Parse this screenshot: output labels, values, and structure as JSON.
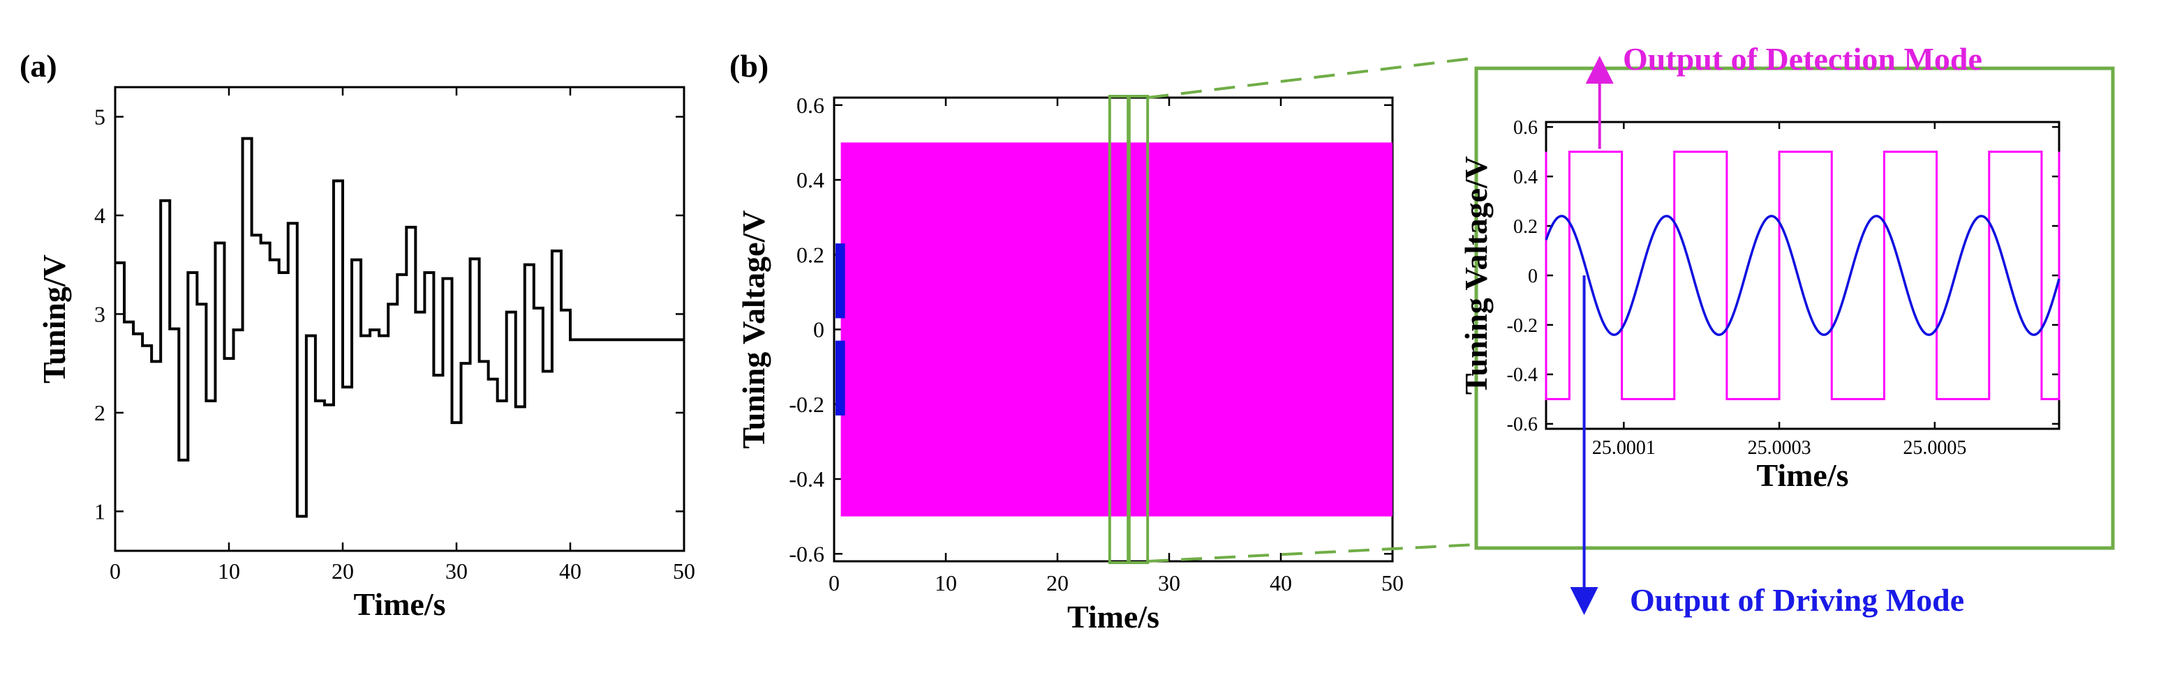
{
  "panel_labels": {
    "a": "(a)",
    "b": "(b)"
  },
  "annotations": {
    "detection": "Output of Detection Mode",
    "driving": "Output of Driving Mode"
  },
  "colors": {
    "detection": "#ff00ff",
    "driving": "#1010e0",
    "zoom_box": "#70ad47",
    "step_line": "#000000",
    "detection_arrow": "#e020e0",
    "driving_arrow": "#1a1ae6"
  },
  "chart_data": [
    {
      "id": "a",
      "type": "line",
      "step": true,
      "xlabel": "Time/s",
      "ylabel": "Tuning/V",
      "xlim": [
        0,
        50
      ],
      "ylim": [
        0.6,
        5.3
      ],
      "xticks": [
        0,
        10,
        20,
        30,
        40,
        50
      ],
      "yticks": [
        1,
        2,
        3,
        4,
        5
      ],
      "grid": false,
      "series": [
        {
          "x": [
            0,
            0.8,
            1.6,
            2.4,
            3.2,
            4.0,
            4.8,
            5.6,
            6.4,
            7.2,
            8.0,
            8.8,
            9.6,
            10.4,
            11.2,
            12.0,
            12.8,
            13.6,
            14.4,
            15.2,
            16.0,
            16.8,
            17.6,
            18.4,
            19.2,
            20.0,
            20.8,
            21.6,
            22.4,
            23.2,
            24.0,
            24.8,
            25.6,
            26.4,
            27.2,
            28.0,
            28.8,
            29.6,
            30.4,
            31.2,
            32.0,
            32.8,
            33.6,
            34.4,
            35.2,
            36.0,
            36.8,
            37.6,
            38.4,
            39.2,
            40.0,
            40.8,
            41.6,
            42.4,
            43.2,
            44.0,
            44.8,
            45.6,
            46.4,
            47.2,
            48.0,
            48.8,
            49.6
          ],
          "values": [
            3.52,
            2.92,
            2.8,
            2.68,
            2.52,
            4.15,
            2.85,
            1.52,
            3.42,
            3.1,
            2.12,
            3.72,
            2.55,
            2.84,
            4.78,
            3.8,
            3.72,
            3.55,
            3.42,
            3.92,
            0.95,
            2.78,
            2.12,
            2.08,
            4.35,
            2.26,
            3.55,
            2.78,
            2.84,
            2.78,
            3.1,
            3.4,
            3.88,
            3.02,
            3.42,
            2.38,
            3.36,
            1.9,
            2.5,
            3.56,
            2.52,
            2.34,
            2.12,
            3.02,
            2.06,
            3.5,
            3.06,
            2.42,
            3.64,
            3.04,
            2.74,
            2.74,
            2.74,
            2.74,
            2.74,
            2.74,
            2.74,
            2.74,
            2.74,
            2.74,
            2.74,
            2.74,
            2.74
          ]
        }
      ]
    },
    {
      "id": "b",
      "type": "line",
      "xlabel": "Time/s",
      "ylabel": "Tuning Valtage/V",
      "xlim": [
        0,
        50
      ],
      "ylim": [
        -0.62,
        0.62
      ],
      "xticks": [
        0,
        10,
        20,
        30,
        40,
        50
      ],
      "yticks": [
        0.6,
        0.4,
        0.2,
        0,
        -0.2,
        -0.4,
        -0.6
      ],
      "yticklabels": [
        "0.6",
        "0.4",
        "0.2",
        "0",
        "-0.2",
        "-0.4",
        "-0.6"
      ],
      "grid": false,
      "series": [
        {
          "name": "Output of Detection Mode",
          "kind": "square",
          "amplitude": 0.5,
          "band_x": [
            0.6,
            50
          ]
        },
        {
          "name": "Output of Driving Mode",
          "kind": "sine",
          "amplitude": 0.23,
          "band_x": [
            0,
            0.6
          ]
        }
      ],
      "zoom_region_x": [
        25.8,
        27.2
      ]
    },
    {
      "id": "b-inset",
      "type": "line",
      "xlabel": "Time/s",
      "ylabel": "Tuning Valtage/V",
      "xlim": [
        25.0,
        25.00066
      ],
      "ylim": [
        -0.62,
        0.62
      ],
      "xticks": [
        25.0001,
        25.0003,
        25.0005
      ],
      "xticklabels": [
        "25.0001",
        "25.0003",
        "25.0005"
      ],
      "yticks": [
        0.6,
        0.4,
        0.2,
        0,
        -0.2,
        -0.4,
        -0.6
      ],
      "yticklabels": [
        "0.6",
        "0.4",
        "0.2",
        "0",
        "-0.2",
        "-0.4",
        "-0.6"
      ],
      "grid": false,
      "period": 0.000135,
      "series": [
        {
          "name": "Output of Detection Mode",
          "kind": "square",
          "amplitude": 0.5,
          "phase_start": 25.00003
        },
        {
          "name": "Output of Driving Mode",
          "kind": "sine",
          "amplitude": 0.24,
          "peak_at": 25.00002
        }
      ]
    }
  ]
}
